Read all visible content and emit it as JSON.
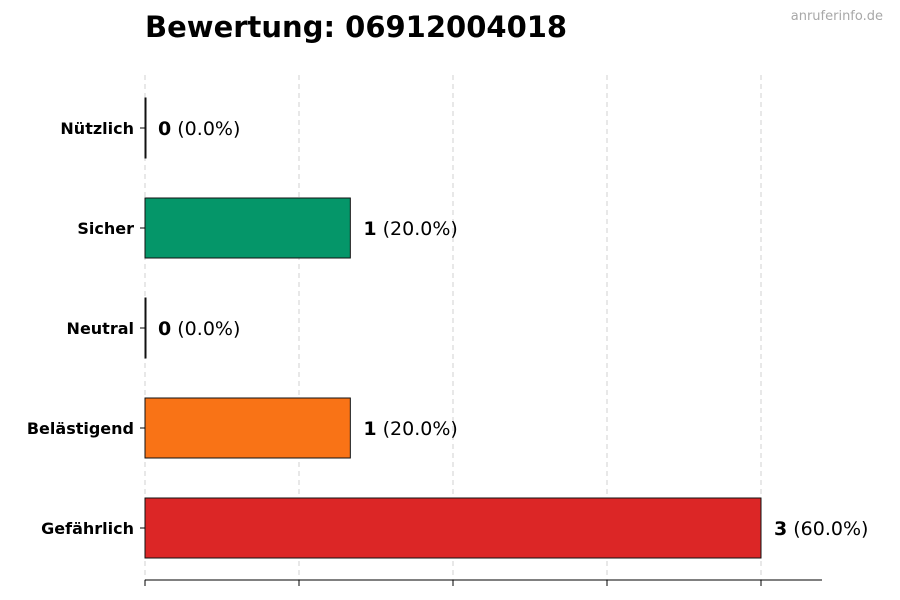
{
  "header": {
    "title": "Bewertung: 06912004018",
    "watermark": "anruferinfo.de"
  },
  "chart_data": {
    "type": "bar",
    "orientation": "horizontal",
    "title": "Bewertung: 06912004018",
    "xlabel": "",
    "ylabel": "",
    "categories": [
      "Nützlich",
      "Sicher",
      "Neutral",
      "Belästigend",
      "Gefährlich"
    ],
    "values": [
      0,
      1,
      0,
      1,
      3
    ],
    "value_labels": [
      "(0.0%)",
      "(20.0%)",
      "(0.0%)",
      "(20.0%)",
      "(60.0%)"
    ],
    "colors": [
      "#1f77b4",
      "#059669",
      "#9ca3af",
      "#f97316",
      "#dc2626"
    ],
    "xlim": [
      0,
      3.3
    ],
    "xticks": [
      0,
      0.75,
      1.5,
      2.25,
      3.0
    ],
    "xtick_labels_visible": false,
    "grid": "x-dashed"
  }
}
